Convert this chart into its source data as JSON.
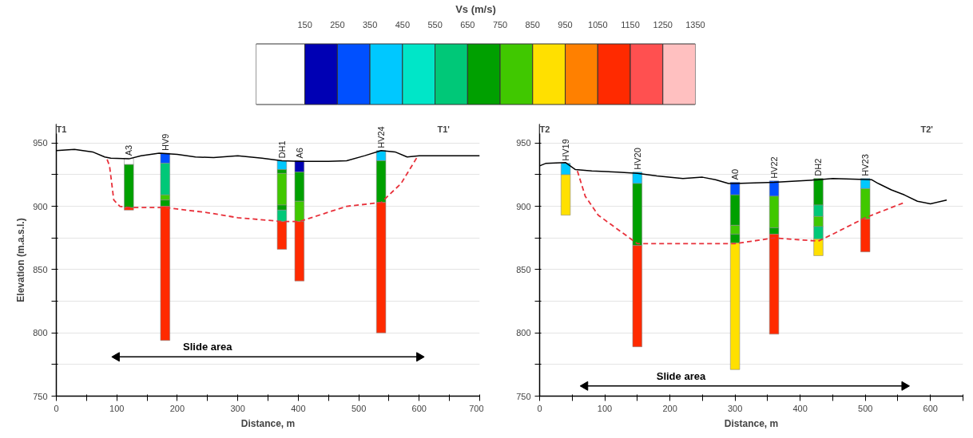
{
  "chart_data": [
    {
      "type": "bar",
      "orientation": "horizontal",
      "stacked": true,
      "xlabel": "Vs (m/s)",
      "categories": [
        null
      ],
      "xlim": [
        0,
        1350
      ],
      "xticks": [
        150,
        250,
        350,
        450,
        550,
        650,
        750,
        850,
        950,
        1050,
        1150,
        1250,
        1350
      ],
      "tick_labels": "x",
      "series": [
        {
          "color": "#ffffff",
          "values": [
            150
          ]
        },
        {
          "color": "#0000b4",
          "values": [
            100
          ]
        },
        {
          "color": "#0050ff",
          "values": [
            100
          ]
        },
        {
          "color": "#00c8ff",
          "values": [
            100
          ]
        },
        {
          "color": "#00e6c8",
          "values": [
            100
          ]
        },
        {
          "color": "#00c878",
          "values": [
            100
          ]
        },
        {
          "color": "#00a000",
          "values": [
            100
          ]
        },
        {
          "color": "#40c800",
          "values": [
            100
          ]
        },
        {
          "color": "#ffe000",
          "values": [
            100
          ]
        },
        {
          "color": "#ff8000",
          "values": [
            100
          ]
        },
        {
          "color": "#ff2a00",
          "values": [
            100
          ]
        },
        {
          "color": "#ff5050",
          "values": [
            100
          ]
        },
        {
          "color": "#ffc0c0",
          "values": [
            100
          ]
        }
      ]
    },
    {
      "type": "line",
      "xlabel": "Distance, m",
      "ylabel": "Elevation (m.a.s.l.)",
      "xlim": [
        0,
        700
      ],
      "ylim": [
        750,
        965
      ],
      "xticks": [
        0,
        {
          "value": 50,
          "label": null
        },
        100,
        {
          "value": 150,
          "label": null
        },
        200,
        {
          "value": 250,
          "label": null
        },
        300,
        {
          "value": 350,
          "label": null
        },
        400,
        {
          "value": 450,
          "label": null
        },
        500,
        {
          "value": 550,
          "label": null
        },
        600,
        {
          "value": 650,
          "label": null
        },
        700
      ],
      "yticks": [
        750,
        {
          "value": 775,
          "label": null
        },
        800,
        {
          "value": 825,
          "label": null
        },
        850,
        {
          "value": 875,
          "label": null
        },
        900,
        {
          "value": 925,
          "label": null
        },
        950
      ],
      "grid": "y",
      "series": [
        {
          "type": "bar",
          "color": "#ffffff",
          "x": [
            120
          ],
          "base": [
            933
          ],
          "values": [
            5
          ],
          "value_labels": [
            "A3"
          ]
        },
        {
          "type": "bar",
          "color": "#00a000",
          "x": [
            120
          ],
          "base": [
            899
          ],
          "values": [
            34
          ]
        },
        {
          "type": "bar",
          "color": "#ff2a00",
          "x": [
            120
          ],
          "base": [
            897
          ],
          "values": [
            2
          ]
        },
        {
          "type": "bar",
          "color": "#0050ff",
          "x": [
            180
          ],
          "base": [
            934
          ],
          "values": [
            8
          ],
          "value_labels": [
            "HV9"
          ]
        },
        {
          "type": "bar",
          "color": "#00c878",
          "x": [
            180
          ],
          "base": [
            909
          ],
          "values": [
            25
          ]
        },
        {
          "type": "bar",
          "color": "#40c800",
          "x": [
            180
          ],
          "base": [
            905
          ],
          "values": [
            4
          ]
        },
        {
          "type": "bar",
          "color": "#00a000",
          "x": [
            180
          ],
          "base": [
            900
          ],
          "values": [
            5
          ]
        },
        {
          "type": "bar",
          "color": "#ff2a00",
          "x": [
            180
          ],
          "base": [
            794
          ],
          "values": [
            106
          ]
        },
        {
          "type": "bar",
          "color": "#00c8ff",
          "x": [
            373
          ],
          "base": [
            929
          ],
          "values": [
            7
          ],
          "value_labels": [
            "DH1"
          ]
        },
        {
          "type": "bar",
          "color": "#00a000",
          "x": [
            373
          ],
          "base": [
            926
          ],
          "values": [
            3
          ]
        },
        {
          "type": "bar",
          "color": "#40c800",
          "x": [
            373
          ],
          "base": [
            901
          ],
          "values": [
            25
          ]
        },
        {
          "type": "bar",
          "color": "#00a000",
          "x": [
            373
          ],
          "base": [
            897
          ],
          "values": [
            4
          ]
        },
        {
          "type": "bar",
          "color": "#00c878",
          "x": [
            373
          ],
          "base": [
            888
          ],
          "values": [
            9
          ]
        },
        {
          "type": "bar",
          "color": "#ff2a00",
          "x": [
            373
          ],
          "base": [
            866
          ],
          "values": [
            22
          ]
        },
        {
          "type": "bar",
          "color": "#0000b4",
          "x": [
            402
          ],
          "base": [
            927
          ],
          "values": [
            9
          ],
          "value_labels": [
            "A6"
          ]
        },
        {
          "type": "bar",
          "color": "#00a000",
          "x": [
            402
          ],
          "base": [
            904
          ],
          "values": [
            23
          ]
        },
        {
          "type": "bar",
          "color": "#40c800",
          "x": [
            402
          ],
          "base": [
            888
          ],
          "values": [
            16
          ]
        },
        {
          "type": "bar",
          "color": "#ff2a00",
          "x": [
            402
          ],
          "base": [
            841
          ],
          "values": [
            47
          ]
        },
        {
          "type": "bar",
          "color": "#00c8ff",
          "x": [
            537
          ],
          "base": [
            936
          ],
          "values": [
            8
          ],
          "value_labels": [
            "HV24"
          ]
        },
        {
          "type": "bar",
          "color": "#00a000",
          "x": [
            537
          ],
          "base": [
            903
          ],
          "values": [
            33
          ]
        },
        {
          "type": "bar",
          "color": "#ff2a00",
          "x": [
            537
          ],
          "base": [
            800
          ],
          "values": [
            103
          ]
        },
        {
          "type": "line",
          "color": "#000000",
          "line_style": "solid",
          "x": [
            0,
            30,
            60,
            80,
            90,
            120,
            140,
            170,
            200,
            230,
            260,
            300,
            340,
            373,
            402,
            450,
            480,
            510,
            537,
            560,
            580,
            600,
            700
          ],
          "values": [
            944,
            945,
            943,
            939,
            938,
            937.5,
            940,
            942,
            941,
            939,
            938.5,
            940,
            938,
            936,
            935.5,
            935.5,
            936,
            940,
            944,
            943,
            939,
            940,
            940
          ]
        },
        {
          "type": "line",
          "color": "#e8303a",
          "line_style": "dashed",
          "x": [
            84,
            88,
            95,
            105,
            120,
            180,
            250,
            300,
            373,
            402,
            480,
            537,
            570,
            598
          ],
          "values": [
            937,
            932,
            905,
            900,
            899,
            899,
            895,
            891,
            888,
            888,
            900,
            903,
            918,
            940
          ]
        },
        {
          "type": "line",
          "name": "Slide area",
          "color": "#000000",
          "line_style": "solid",
          "marker": "triangle",
          "x": [
            100,
            600
          ],
          "values": [
            781,
            781
          ]
        }
      ],
      "annotations": [
        "T1",
        "T1'"
      ]
    },
    {
      "type": "line",
      "xlabel": "Distance, m",
      "xlim": [
        0,
        650
      ],
      "ylim": [
        750,
        965
      ],
      "xticks": [
        0,
        {
          "value": 50,
          "label": null
        },
        100,
        {
          "value": 150,
          "label": null
        },
        200,
        {
          "value": 250,
          "label": null
        },
        300,
        {
          "value": 350,
          "label": null
        },
        400,
        {
          "value": 450,
          "label": null
        },
        500,
        {
          "value": 550,
          "label": null
        },
        600,
        {
          "value": 650,
          "label": null
        }
      ],
      "yticks": [
        750,
        {
          "value": 775,
          "label": null
        },
        800,
        {
          "value": 825,
          "label": null
        },
        850,
        {
          "value": 875,
          "label": null
        },
        900,
        {
          "value": 925,
          "label": null
        },
        950
      ],
      "grid": "y",
      "series": [
        {
          "type": "bar",
          "color": "#00c8ff",
          "x": [
            40
          ],
          "base": [
            925
          ],
          "values": [
            9
          ],
          "value_labels": [
            "HV19"
          ]
        },
        {
          "type": "bar",
          "color": "#ffe000",
          "x": [
            40
          ],
          "base": [
            893
          ],
          "values": [
            32
          ]
        },
        {
          "type": "bar",
          "color": "#00c8ff",
          "x": [
            150
          ],
          "base": [
            918
          ],
          "values": [
            9
          ],
          "value_labels": [
            "HV20"
          ]
        },
        {
          "type": "bar",
          "color": "#00a000",
          "x": [
            150
          ],
          "base": [
            869
          ],
          "values": [
            49
          ]
        },
        {
          "type": "bar",
          "color": "#ff2a00",
          "x": [
            150
          ],
          "base": [
            789
          ],
          "values": [
            80
          ]
        },
        {
          "type": "bar",
          "color": "#0050ff",
          "x": [
            300
          ],
          "base": [
            909
          ],
          "values": [
            10
          ],
          "value_labels": [
            "A0"
          ]
        },
        {
          "type": "bar",
          "color": "#00a000",
          "x": [
            300
          ],
          "base": [
            885
          ],
          "values": [
            24
          ]
        },
        {
          "type": "bar",
          "color": "#40c800",
          "x": [
            300
          ],
          "base": [
            878
          ],
          "values": [
            7
          ]
        },
        {
          "type": "bar",
          "color": "#00a000",
          "x": [
            300
          ],
          "base": [
            871
          ],
          "values": [
            7
          ]
        },
        {
          "type": "bar",
          "color": "#ffe000",
          "x": [
            300
          ],
          "base": [
            771
          ],
          "values": [
            100
          ]
        },
        {
          "type": "bar",
          "color": "#0050ff",
          "x": [
            360
          ],
          "base": [
            908
          ],
          "values": [
            12
          ],
          "value_labels": [
            "HV22"
          ]
        },
        {
          "type": "bar",
          "color": "#40c800",
          "x": [
            360
          ],
          "base": [
            883
          ],
          "values": [
            25
          ]
        },
        {
          "type": "bar",
          "color": "#00a000",
          "x": [
            360
          ],
          "base": [
            878
          ],
          "values": [
            5
          ]
        },
        {
          "type": "bar",
          "color": "#ff2a00",
          "x": [
            360
          ],
          "base": [
            799
          ],
          "values": [
            79
          ]
        },
        {
          "type": "bar",
          "color": "#00a000",
          "x": [
            428
          ],
          "base": [
            901
          ],
          "values": [
            21
          ],
          "value_labels": [
            "DH2"
          ]
        },
        {
          "type": "bar",
          "color": "#00c878",
          "x": [
            428
          ],
          "base": [
            892
          ],
          "values": [
            9
          ]
        },
        {
          "type": "bar",
          "color": "#40c800",
          "x": [
            428
          ],
          "base": [
            884
          ],
          "values": [
            8
          ]
        },
        {
          "type": "bar",
          "color": "#00c878",
          "x": [
            428
          ],
          "base": [
            874
          ],
          "values": [
            10
          ]
        },
        {
          "type": "bar",
          "color": "#ffe000",
          "x": [
            428
          ],
          "base": [
            861
          ],
          "values": [
            13
          ]
        },
        {
          "type": "bar",
          "color": "#00c8ff",
          "x": [
            500
          ],
          "base": [
            914
          ],
          "values": [
            8
          ],
          "value_labels": [
            "HV23"
          ]
        },
        {
          "type": "bar",
          "color": "#40c800",
          "x": [
            500
          ],
          "base": [
            890
          ],
          "values": [
            24
          ]
        },
        {
          "type": "bar",
          "color": "#ff2a00",
          "x": [
            500
          ],
          "base": [
            864
          ],
          "values": [
            26
          ]
        },
        {
          "type": "line",
          "color": "#000000",
          "line_style": "solid",
          "x": [
            0,
            10,
            40,
            55,
            80,
            120,
            150,
            180,
            220,
            250,
            270,
            290,
            300,
            360,
            428,
            450,
            480,
            510,
            520,
            540,
            560,
            580,
            600,
            625
          ],
          "values": [
            932,
            934,
            934.5,
            929,
            928,
            927,
            926,
            924,
            922,
            923,
            921,
            918,
            918,
            919,
            921,
            922,
            921.5,
            921,
            918,
            913,
            909,
            904,
            902,
            905
          ]
        },
        {
          "type": "line",
          "color": "#e8303a",
          "line_style": "dashed",
          "x": [
            58,
            70,
            90,
            150,
            300,
            360,
            428,
            450,
            500,
            560
          ],
          "values": [
            928,
            908,
            893,
            870.5,
            870.5,
            875,
            872.5,
            878,
            891,
            903
          ]
        },
        {
          "type": "line",
          "name": "Slide area",
          "color": "#000000",
          "line_style": "solid",
          "marker": "triangle",
          "x": [
            70,
            560
          ],
          "values": [
            758,
            758
          ]
        }
      ],
      "annotations": [
        "T2",
        "T2'"
      ]
    }
  ]
}
